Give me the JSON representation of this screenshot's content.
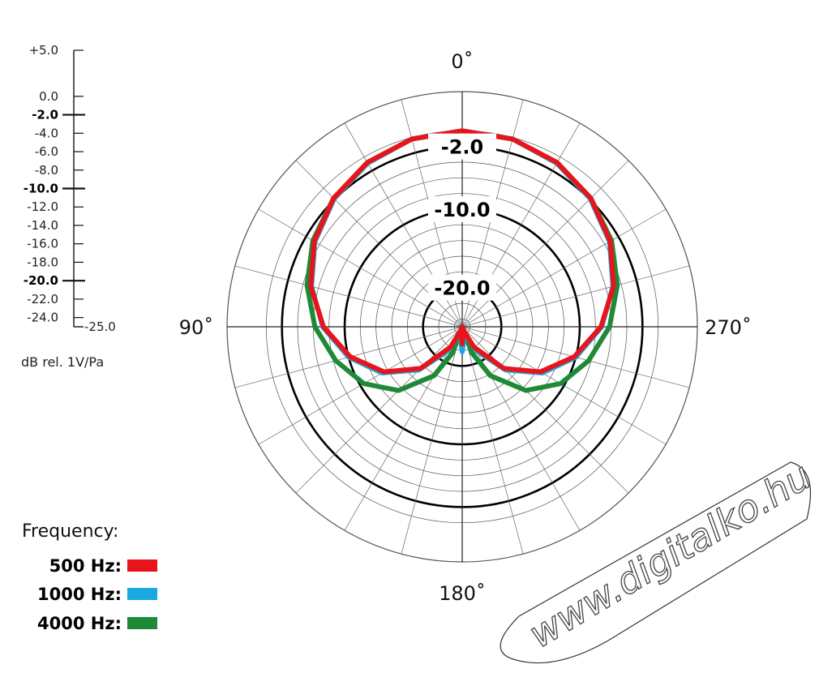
{
  "chart_data": {
    "type": "polar",
    "units_label": "dB rel. 1V/Pa",
    "scale": {
      "min": -25.0,
      "max": 5.0,
      "ticks": [
        "+5.0",
        "0.0",
        "-2.0",
        "-4.0",
        "-6.0",
        "-8.0",
        "-10.0",
        "-12.0",
        "-14.0",
        "-16.0",
        "-18.0",
        "-20.0",
        "-22.0",
        "-24.0",
        "-25.0"
      ],
      "tick_values": [
        5,
        0,
        -2,
        -4,
        -6,
        -8,
        -10,
        -12,
        -14,
        -16,
        -18,
        -20,
        -22,
        -24,
        -25
      ],
      "bold_ticks": [
        "-2.0",
        "-10.0",
        "-20.0"
      ]
    },
    "angle_labels": [
      {
        "angle": 0,
        "text": "0˚"
      },
      {
        "angle": 90,
        "text": "90˚"
      },
      {
        "angle": 180,
        "text": "180˚"
      },
      {
        "angle": 270,
        "text": "270˚"
      }
    ],
    "ring_labels": [
      {
        "value": -2.0,
        "text": "-2.0"
      },
      {
        "value": -10.0,
        "text": "-10.0"
      },
      {
        "value": -20.0,
        "text": "-20.0"
      }
    ],
    "legend_title": "Frequency:",
    "series": [
      {
        "name": "500 Hz:",
        "color": "#e8141c",
        "angles": [
          0,
          15,
          30,
          45,
          60,
          75,
          90,
          105,
          120,
          135,
          150,
          160,
          170,
          175,
          180,
          185,
          190,
          200,
          210,
          225,
          240,
          255,
          270,
          285,
          300,
          315,
          330,
          345,
          360
        ],
        "db": [
          0.0,
          -0.2,
          -0.8,
          -1.8,
          -3.2,
          -5.0,
          -7.3,
          -10.2,
          -13.5,
          -17.5,
          -22.0,
          -24.5,
          -25.0,
          -23.8,
          -22.8,
          -23.8,
          -25.0,
          -24.5,
          -22.0,
          -17.5,
          -13.5,
          -10.2,
          -7.3,
          -5.0,
          -3.2,
          -1.8,
          -0.8,
          -0.2,
          0.0
        ]
      },
      {
        "name": "1000 Hz:",
        "color": "#1aa8df",
        "angles": [
          0,
          15,
          30,
          45,
          60,
          75,
          90,
          105,
          120,
          135,
          150,
          160,
          170,
          175,
          180,
          185,
          190,
          200,
          210,
          225,
          240,
          255,
          270,
          285,
          300,
          315,
          330,
          345,
          360
        ],
        "db": [
          0.0,
          -0.2,
          -0.9,
          -1.9,
          -3.3,
          -5.1,
          -7.2,
          -10.0,
          -13.2,
          -17.2,
          -21.5,
          -24.2,
          -25.0,
          -23.0,
          -21.8,
          -23.0,
          -25.0,
          -24.2,
          -21.5,
          -17.2,
          -13.2,
          -10.0,
          -7.2,
          -5.1,
          -3.3,
          -1.9,
          -0.9,
          -0.2,
          0.0
        ]
      },
      {
        "name": "4000 Hz:",
        "color": "#1e8a38",
        "angles": [
          0,
          15,
          30,
          45,
          60,
          75,
          90,
          105,
          120,
          135,
          150,
          160,
          170,
          175,
          180,
          185,
          190,
          200,
          210,
          225,
          240,
          255,
          270,
          285,
          300,
          315,
          330,
          345,
          360
        ],
        "db": [
          0.0,
          -0.2,
          -0.8,
          -1.8,
          -3.0,
          -4.5,
          -6.2,
          -8.3,
          -10.5,
          -13.5,
          -17.8,
          -21.5,
          -25.0,
          -23.5,
          -22.5,
          -23.5,
          -25.0,
          -21.5,
          -17.8,
          -13.5,
          -10.5,
          -8.3,
          -6.2,
          -4.5,
          -3.0,
          -1.8,
          -0.8,
          -0.2,
          0.0
        ]
      }
    ]
  },
  "watermark": "www.digitalko.hu"
}
